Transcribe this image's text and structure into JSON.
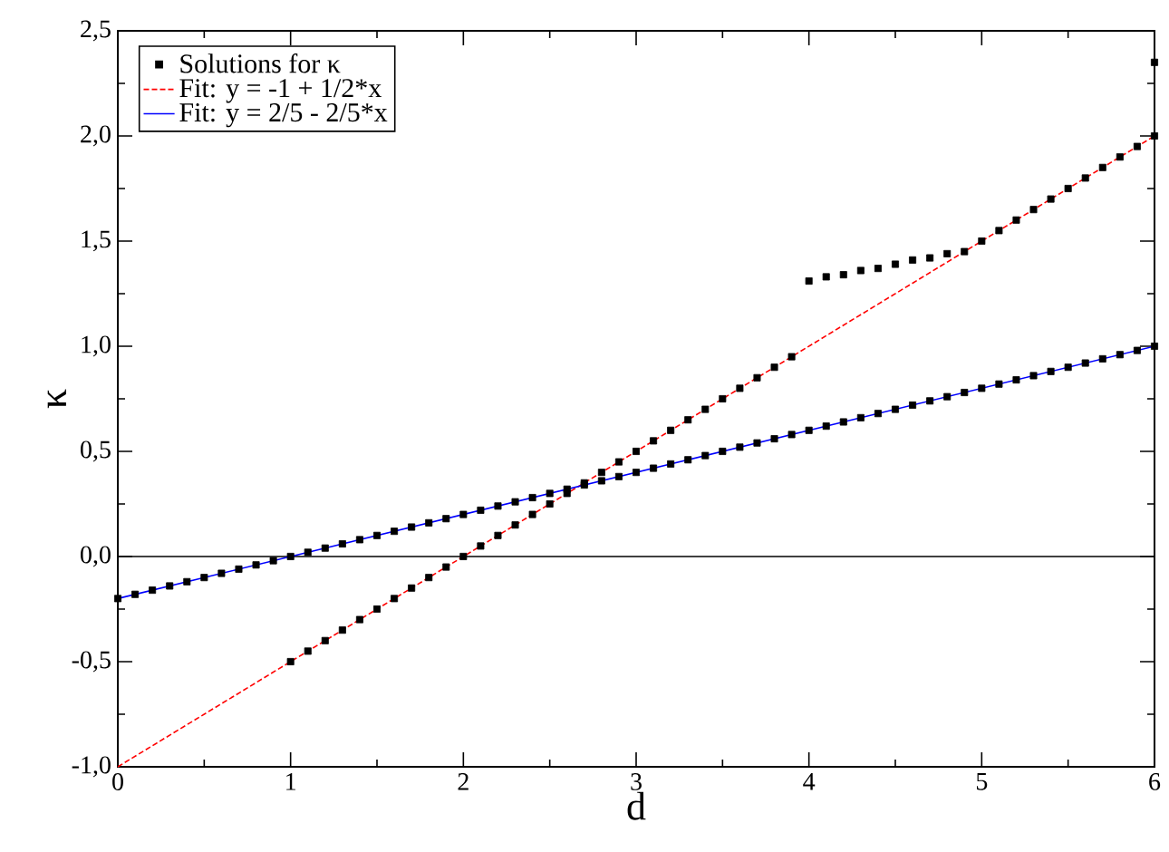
{
  "chart_data": {
    "type": "scatter",
    "xlabel": "d",
    "ylabel": "κ",
    "xlim": [
      0,
      6
    ],
    "ylim": [
      -1,
      2.5
    ],
    "xticks": [
      0,
      1,
      2,
      3,
      4,
      5,
      6,
      {
        "value": 0.5,
        "label": null
      },
      {
        "value": 1.5,
        "label": null
      },
      {
        "value": 2.5,
        "label": null
      },
      {
        "value": 3.5,
        "label": null
      },
      {
        "value": 4.5,
        "label": null
      },
      {
        "value": 5.5,
        "label": null
      }
    ],
    "yticks": [
      {
        "value": -1,
        "label": "-1,0"
      },
      {
        "value": -0.5,
        "label": "-0,5"
      },
      {
        "value": 0,
        "label": "0,0"
      },
      {
        "value": 0.5,
        "label": "0,5"
      },
      {
        "value": 1,
        "label": "1,0"
      },
      {
        "value": 1.5,
        "label": "1,5"
      },
      {
        "value": 2,
        "label": "2,0"
      },
      {
        "value": 2.5,
        "label": "2,5"
      },
      {
        "value": -0.75,
        "label": null
      },
      {
        "value": -0.25,
        "label": null
      },
      {
        "value": 0.25,
        "label": null
      },
      {
        "value": 0.75,
        "label": null
      },
      {
        "value": 1.25,
        "label": null
      },
      {
        "value": 1.75,
        "label": null
      },
      {
        "value": 2.25,
        "label": null
      }
    ],
    "grid": false,
    "legend": "top left",
    "ref_lines": [
      {
        "axis": "y",
        "value": 0,
        "color": "#000000"
      }
    ],
    "series": [
      {
        "name": "Solutions for κ",
        "marker": "square",
        "color": "#000000",
        "x": [
          0,
          0.1,
          0.2,
          0.3,
          0.4,
          0.5,
          0.6,
          0.7,
          0.8,
          0.9,
          1,
          1.1,
          1.2,
          1.3,
          1.4,
          1.5,
          1.6,
          1.7,
          1.8,
          1.9,
          2,
          2.1,
          2.2,
          2.3,
          2.4,
          2.5,
          2.6,
          2.7,
          2.8,
          2.9,
          3,
          3.1,
          3.2,
          3.3,
          3.4,
          3.5,
          3.6,
          3.7,
          3.8,
          3.9,
          4,
          4.1,
          4.2,
          4.3,
          4.4,
          4.5,
          4.6,
          4.7,
          4.8,
          4.9,
          5,
          5.1,
          5.2,
          5.3,
          5.4,
          5.5,
          5.6,
          5.7,
          5.8,
          5.9,
          6,
          1,
          1.1,
          1.2,
          1.3,
          1.4,
          1.5,
          1.6,
          1.7,
          1.8,
          1.9,
          2,
          2.1,
          2.2,
          2.3,
          2.4,
          2.5,
          2.6,
          2.7,
          2.8,
          2.9,
          3,
          3.1,
          3.2,
          3.3,
          3.4,
          3.5,
          3.6,
          3.7,
          3.8,
          3.9,
          4,
          4.1,
          4.2,
          4.3,
          4.4,
          4.5,
          4.6,
          4.7,
          4.8,
          4.9,
          5,
          5.1,
          5.2,
          5.3,
          5.4,
          5.5,
          5.6,
          5.7,
          5.8,
          5.9,
          6,
          6
        ],
        "values": [
          -0.2,
          -0.18,
          -0.16,
          -0.14,
          -0.12,
          -0.1,
          -0.08,
          -0.06,
          -0.04,
          -0.02,
          0,
          0.02,
          0.04,
          0.06,
          0.08,
          0.1,
          0.12,
          0.14,
          0.16,
          0.18,
          0.2,
          0.22,
          0.24,
          0.26,
          0.28,
          0.3,
          0.32,
          0.34,
          0.36,
          0.38,
          0.4,
          0.42,
          0.44,
          0.46,
          0.48,
          0.5,
          0.52,
          0.54,
          0.56,
          0.58,
          0.6,
          0.62,
          0.64,
          0.66,
          0.68,
          0.7,
          0.72,
          0.74,
          0.76,
          0.78,
          0.8,
          0.82,
          0.84,
          0.86,
          0.88,
          0.9,
          0.92,
          0.94,
          0.96,
          0.98,
          1,
          -0.5,
          -0.45,
          -0.4,
          -0.35,
          -0.3,
          -0.25,
          -0.2,
          -0.15,
          -0.1,
          -0.05,
          0,
          0.05,
          0.1,
          0.15,
          0.2,
          0.25,
          0.3,
          0.35,
          0.4,
          0.45,
          0.5,
          0.55,
          0.6,
          0.65,
          0.7,
          0.75,
          0.8,
          0.85,
          0.9,
          0.95,
          1.31,
          1.33,
          1.34,
          1.36,
          1.37,
          1.39,
          1.41,
          1.42,
          1.44,
          1.45,
          1.5,
          1.55,
          1.6,
          1.65,
          1.7,
          1.75,
          1.8,
          1.85,
          1.9,
          1.95,
          2,
          2.35
        ]
      },
      {
        "name": "Fit: y = -1 + 1/2*x",
        "type": "line",
        "line_style": "dashed",
        "color": "#ff0000",
        "x": [
          0,
          6
        ],
        "values": [
          -1,
          2
        ]
      },
      {
        "name": "Fit: y = 2/5 - 2/5*x",
        "type": "line",
        "line_style": "solid",
        "color": "#0000ff",
        "x": [
          0,
          6
        ],
        "values": [
          -0.2,
          1
        ]
      }
    ]
  }
}
